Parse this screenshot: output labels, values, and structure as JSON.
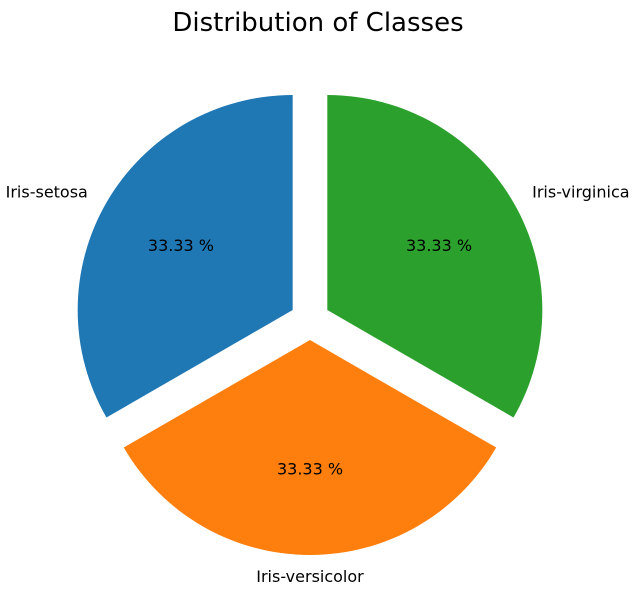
{
  "chart_data": {
    "type": "pie",
    "title": "Distribution of Classes",
    "slices": [
      {
        "label": "Iris-setosa",
        "value": 33.33,
        "percent_label": "33.33 %",
        "color": "#1f77b4"
      },
      {
        "label": "Iris-versicolor",
        "value": 33.33,
        "percent_label": "33.33 %",
        "color": "#ff7f0e"
      },
      {
        "label": "Iris-virginica",
        "value": 33.33,
        "percent_label": "33.33 %",
        "color": "#2ca02c"
      }
    ],
    "start_angle": 90,
    "direction": "counterclockwise",
    "exploded": true
  }
}
